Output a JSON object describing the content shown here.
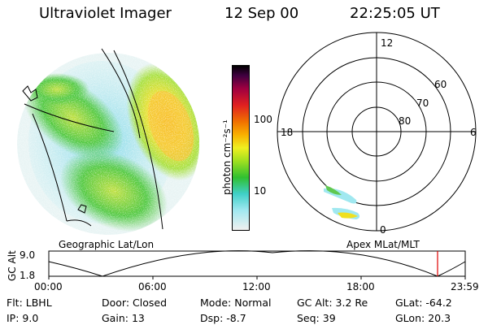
{
  "header": {
    "instrument": "Ultraviolet Imager",
    "date": "12 Sep 00",
    "time": "22:25:05 UT"
  },
  "left_panel": {
    "caption": "Geographic Lat/Lon"
  },
  "colorbar": {
    "unit_label": "photon cm⁻²s⁻¹",
    "ticks": [
      "100",
      "10"
    ],
    "scale": "log",
    "colors": [
      "#f0f0f0",
      "#a0e8f0",
      "#40d0c8",
      "#30c030",
      "#a0e020",
      "#f0f020",
      "#f8b000",
      "#f07000",
      "#e02020",
      "#a00040",
      "#400040",
      "#000000"
    ]
  },
  "polar_plot": {
    "caption": "Apex MLat/MLT",
    "mlt_labels": [
      "12",
      "18",
      "6",
      "0"
    ],
    "lat_labels": [
      "60",
      "70",
      "80"
    ]
  },
  "timeline": {
    "y_axis_title": "GC Alt",
    "y_ticks": [
      "9.0",
      "1.8"
    ],
    "x_ticks": [
      "00:00",
      "06:00",
      "12:00",
      "18:00",
      "23:59"
    ],
    "marker_color": "#e00000"
  },
  "info": {
    "row1": [
      {
        "label": "Flt:",
        "value": "LBHL"
      },
      {
        "label": "Door:",
        "value": "Closed"
      },
      {
        "label": "Mode:",
        "value": "Normal"
      },
      {
        "label": "GC Alt:",
        "value": "3.2 Re"
      },
      {
        "label": "GLat:",
        "value": "-64.2"
      }
    ],
    "row2": [
      {
        "label": "IP:",
        "value": "9.0"
      },
      {
        "label": "Gain:",
        "value": "13"
      },
      {
        "label": "Dsp:",
        "value": "-8.7"
      },
      {
        "label": "Seq:",
        "value": "39"
      },
      {
        "label": "GLon:",
        "value": "20.3"
      }
    ]
  }
}
